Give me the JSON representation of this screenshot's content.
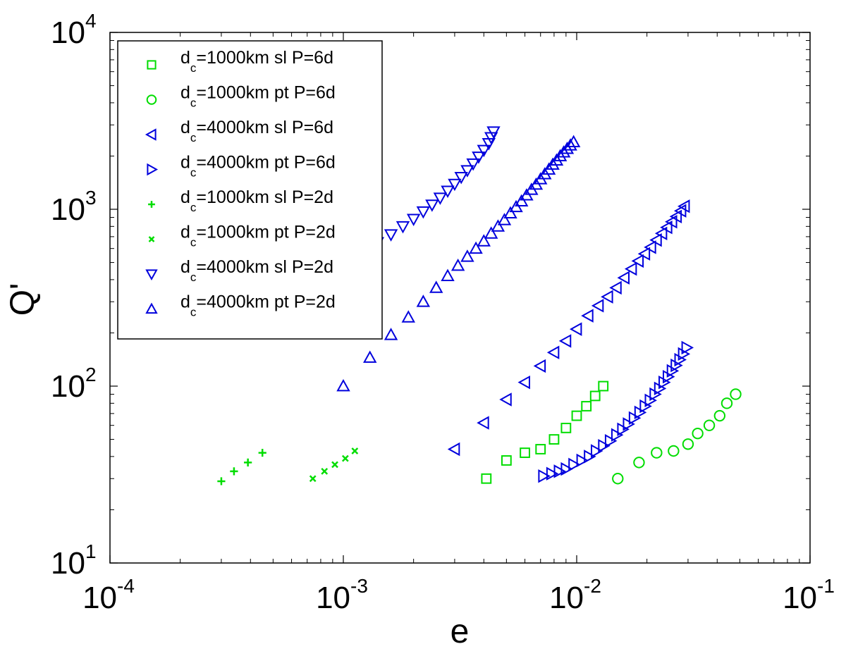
{
  "chart_data": {
    "type": "scatter",
    "title": "",
    "xlabel": "e",
    "ylabel": "Q'",
    "xscale": "log",
    "yscale": "log",
    "xlim": [
      0.0001,
      0.1
    ],
    "ylim": [
      10,
      10000
    ],
    "x_ticks": [
      {
        "base": "10",
        "exp": "-4",
        "value": 0.0001
      },
      {
        "base": "10",
        "exp": "-3",
        "value": 0.001
      },
      {
        "base": "10",
        "exp": "-2",
        "value": 0.01
      },
      {
        "base": "10",
        "exp": "-1",
        "value": 0.1
      }
    ],
    "y_ticks": [
      {
        "base": "10",
        "exp": "1",
        "value": 10
      },
      {
        "base": "10",
        "exp": "2",
        "value": 100
      },
      {
        "base": "10",
        "exp": "3",
        "value": 1000
      },
      {
        "base": "10",
        "exp": "4",
        "value": 10000
      }
    ],
    "legend_position": "top-left",
    "series": [
      {
        "name": "d_c=1000km sl P=6d",
        "label_pre": "d",
        "label_sub": "c",
        "label_post": "=1000km sl P=6d",
        "marker": "square",
        "color": "#00dd00",
        "x": [
          0.0041,
          0.005,
          0.006,
          0.007,
          0.008,
          0.009,
          0.01,
          0.011,
          0.012,
          0.013
        ],
        "y": [
          30,
          38,
          42,
          44,
          50,
          58,
          68,
          77,
          88,
          100
        ]
      },
      {
        "name": "d_c=1000km pt P=6d",
        "label_pre": "d",
        "label_sub": "c",
        "label_post": "=1000km pt P=6d",
        "marker": "circle",
        "color": "#00dd00",
        "x": [
          0.015,
          0.0185,
          0.022,
          0.026,
          0.03,
          0.033,
          0.037,
          0.041,
          0.044,
          0.048
        ],
        "y": [
          30,
          37,
          42,
          43,
          47,
          54,
          60,
          68,
          80,
          90
        ]
      },
      {
        "name": "d_c=4000km sl P=6d",
        "label_pre": "d",
        "label_sub": "c",
        "label_post": "=4000km sl P=6d",
        "marker": "triangle-left",
        "color": "#0000dd",
        "x": [
          0.003,
          0.004,
          0.005,
          0.006,
          0.007,
          0.008,
          0.009,
          0.01,
          0.0112,
          0.0124,
          0.0136,
          0.0148,
          0.016,
          0.0172,
          0.0184,
          0.0196,
          0.0208,
          0.022,
          0.0232,
          0.0244,
          0.0256,
          0.0268,
          0.028,
          0.029
        ],
        "y": [
          44,
          62,
          84,
          105,
          130,
          155,
          180,
          210,
          250,
          285,
          320,
          360,
          410,
          460,
          510,
          560,
          610,
          670,
          730,
          790,
          850,
          910,
          980,
          1040
        ]
      },
      {
        "name": "d_c=4000km pt P=6d",
        "label_pre": "d",
        "label_sub": "c",
        "label_post": "=4000km pt P=6d",
        "marker": "triangle-right",
        "color": "#0000dd",
        "x": [
          0.0072,
          0.0078,
          0.0084,
          0.009,
          0.0097,
          0.0105,
          0.0113,
          0.0121,
          0.013,
          0.0139,
          0.0148,
          0.0157,
          0.0166,
          0.0176,
          0.0186,
          0.0196,
          0.0206,
          0.0216,
          0.0226,
          0.0236,
          0.0246,
          0.0256,
          0.0266,
          0.0276,
          0.0286,
          0.0296
        ],
        "y": [
          31,
          32,
          33,
          34,
          36,
          38,
          40,
          43,
          46,
          49,
          53,
          57,
          61,
          66,
          71,
          77,
          83,
          90,
          97,
          105,
          113,
          122,
          131,
          141,
          152,
          165
        ]
      },
      {
        "name": "d_c=1000km sl P=2d",
        "label_pre": "d",
        "label_sub": "c",
        "label_post": "=1000km sl P=2d",
        "marker": "plus",
        "color": "#00dd00",
        "x": [
          0.0003,
          0.00034,
          0.00039,
          0.00045
        ],
        "y": [
          29,
          33,
          37,
          42
        ]
      },
      {
        "name": "d_c=1000km pt P=2d",
        "label_pre": "d",
        "label_sub": "c",
        "label_post": "=1000km pt P=2d",
        "marker": "x",
        "color": "#00dd00",
        "x": [
          0.00074,
          0.00083,
          0.00092,
          0.00102,
          0.00112
        ],
        "y": [
          30,
          33,
          36,
          39,
          43
        ]
      },
      {
        "name": "d_c=4000km sl P=2d",
        "label_pre": "d",
        "label_sub": "c",
        "label_post": "=4000km sl P=2d",
        "marker": "triangle-down",
        "color": "#0000dd",
        "xy_note": "upper-left chain to ~0.0043; middle chain is 'pt P=2d' plus this; third chain lower right",
        "x": [
          0.0013,
          0.0014,
          0.0016,
          0.0018,
          0.002,
          0.0022,
          0.0024,
          0.0026,
          0.0028,
          0.003,
          0.0032,
          0.0034,
          0.0036,
          0.0038,
          0.004,
          0.0042,
          0.0043,
          0.0044
        ],
        "y": [
          600,
          650,
          720,
          800,
          880,
          970,
          1060,
          1160,
          1270,
          1390,
          1520,
          1660,
          1810,
          1980,
          2160,
          2360,
          2550,
          2750
        ]
      },
      {
        "name": "d_c=4000km pt P=2d",
        "label_pre": "d",
        "label_sub": "c",
        "label_post": "=4000km pt P=2d",
        "marker": "triangle-up",
        "color": "#0000dd",
        "x": [
          0.001,
          0.0013,
          0.0016,
          0.0019,
          0.0022,
          0.0025,
          0.0028,
          0.0031,
          0.0034,
          0.0037,
          0.004,
          0.0043,
          0.0046,
          0.0049,
          0.0052,
          0.0055,
          0.0058,
          0.0061,
          0.0064,
          0.0067,
          0.007,
          0.0073,
          0.0076,
          0.0079,
          0.0082,
          0.0085,
          0.0088,
          0.0091,
          0.0094,
          0.0097
        ],
        "y": [
          100,
          145,
          195,
          245,
          300,
          360,
          420,
          480,
          540,
          600,
          660,
          730,
          800,
          870,
          950,
          1030,
          1110,
          1200,
          1290,
          1380,
          1480,
          1580,
          1680,
          1790,
          1890,
          2000,
          2100,
          2200,
          2300,
          2400
        ]
      }
    ]
  }
}
